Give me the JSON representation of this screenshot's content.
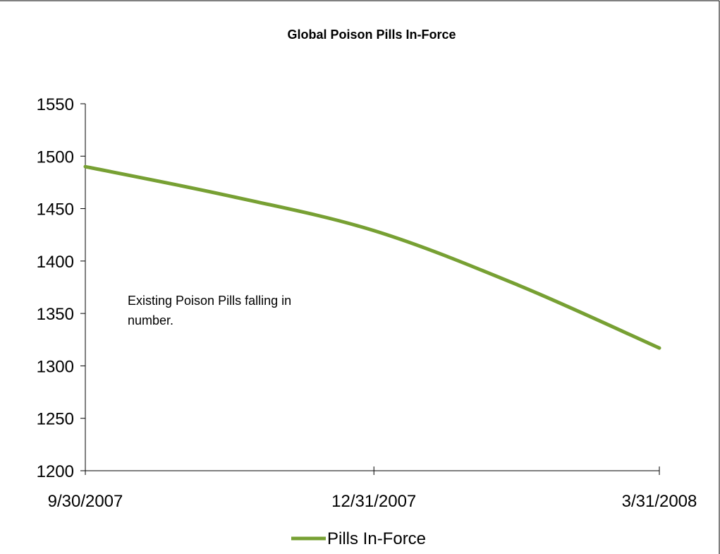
{
  "chart_data": {
    "type": "line",
    "title": "Global Poison Pills In-Force",
    "xlabel": "",
    "ylabel": "",
    "x": [
      "9/30/2007",
      "12/31/2007",
      "3/31/2008"
    ],
    "series": [
      {
        "name": "Pills In-Force",
        "color": "#77A033",
        "points": [
          {
            "x": "9/30/2007",
            "y": 1490
          },
          {
            "x": "11/15/2007",
            "y": 1462
          },
          {
            "x": "12/31/2007",
            "y": 1429
          },
          {
            "x": "2/15/2008",
            "y": 1377
          },
          {
            "x": "3/31/2008",
            "y": 1317
          }
        ]
      }
    ],
    "yticks": [
      1200,
      1250,
      1300,
      1350,
      1400,
      1450,
      1500,
      1550
    ],
    "ylim": [
      1200,
      1550
    ],
    "annotation": {
      "lines": [
        "Existing Poison Pills falling in",
        "number."
      ]
    },
    "legend": {
      "position": "bottom",
      "label": "Pills In-Force"
    },
    "grid": false
  }
}
